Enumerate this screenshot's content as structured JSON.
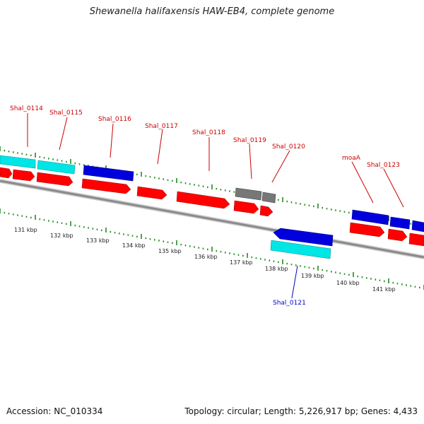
{
  "title": "Shewanella halifaxensis HAW-EB4, complete genome",
  "accession": "Accession: NC_010334",
  "topology": "Topology: circular; Length: 5,226,917 bp; Genes: 4,433",
  "colors": {
    "cds_forward": "#ff0000",
    "cds_reverse": "#ff0000",
    "gene_blue": "#0000dd",
    "gene_cyan": "#00e5e5",
    "gene_gray": "#777777",
    "label_red": "#cc0000",
    "label_blue": "#0000cc",
    "tick_green": "#228B22",
    "backbone": "#888888"
  },
  "tick_labels": [
    "131 kbp",
    "132 kbp",
    "133 kbp",
    "134 kbp",
    "135 kbp",
    "136 kbp",
    "137 kbp",
    "138 kbp",
    "139 kbp",
    "140 kbp",
    "141 kbp"
  ],
  "gene_labels": [
    "Shal_0114",
    "Shal_0115",
    "Shal_0116",
    "Shal_0117",
    "Shal_0118",
    "Shal_0119",
    "Shal_0120",
    "moaA",
    "Shal_0123",
    "Shal_0121"
  ]
}
